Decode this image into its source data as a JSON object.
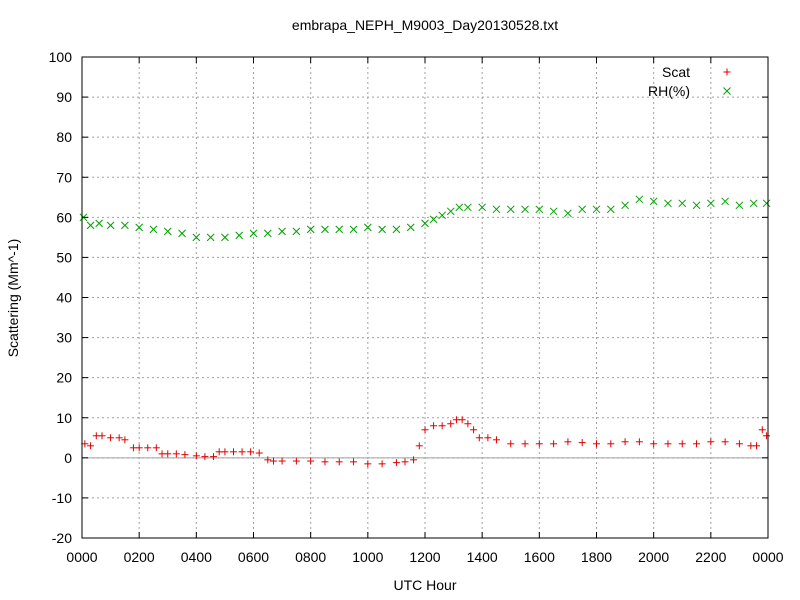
{
  "chart_data": {
    "type": "scatter",
    "title": "embrapa_NEPH_M9003_Day20130528.txt",
    "xlabel": "UTC Hour",
    "ylabel": "Scattering (Mm^-1)",
    "xlim": [
      0,
      24
    ],
    "ylim": [
      -20,
      100
    ],
    "x_ticks": [
      0,
      2,
      4,
      6,
      8,
      10,
      12,
      14,
      16,
      18,
      20,
      22,
      24
    ],
    "x_tick_labels": [
      "0000",
      "0200",
      "0400",
      "0600",
      "0800",
      "1000",
      "1200",
      "1400",
      "1600",
      "1800",
      "2000",
      "2200",
      "0000"
    ],
    "y_ticks": [
      -20,
      -10,
      0,
      10,
      20,
      30,
      40,
      50,
      60,
      70,
      80,
      90,
      100
    ],
    "y_tick_labels": [
      "-20",
      "-10",
      "0",
      "10",
      "20",
      "30",
      "40",
      "50",
      "60",
      "70",
      "80",
      "90",
      "100"
    ],
    "grid": true,
    "zero_line": true,
    "legend_position": "top-right",
    "series": [
      {
        "name": "Scat",
        "marker": "plus",
        "color": "#e00000",
        "x": [
          0.1,
          0.3,
          0.5,
          0.7,
          1.0,
          1.3,
          1.5,
          1.8,
          2.0,
          2.3,
          2.6,
          2.8,
          3.0,
          3.3,
          3.6,
          4.0,
          4.3,
          4.6,
          4.8,
          5.0,
          5.3,
          5.6,
          5.9,
          6.2,
          6.5,
          6.7,
          7.0,
          7.5,
          8.0,
          8.5,
          9.0,
          9.5,
          10.0,
          10.5,
          11.0,
          11.3,
          11.6,
          11.8,
          12.0,
          12.3,
          12.6,
          12.9,
          13.1,
          13.3,
          13.5,
          13.7,
          13.9,
          14.2,
          14.5,
          15.0,
          15.5,
          16.0,
          16.5,
          17.0,
          17.5,
          18.0,
          18.5,
          19.0,
          19.5,
          20.0,
          20.5,
          21.0,
          21.5,
          22.0,
          22.5,
          23.0,
          23.4,
          23.6,
          23.8,
          23.95
        ],
        "values": [
          3.5,
          3.0,
          5.5,
          5.5,
          5.0,
          5.0,
          4.5,
          2.5,
          2.5,
          2.5,
          2.5,
          1.0,
          1.0,
          1.0,
          0.8,
          0.5,
          0.3,
          0.3,
          1.5,
          1.5,
          1.5,
          1.5,
          1.5,
          1.2,
          -0.5,
          -0.8,
          -0.8,
          -0.8,
          -0.8,
          -1.0,
          -1.0,
          -1.0,
          -1.5,
          -1.5,
          -1.2,
          -1.0,
          -0.5,
          3.0,
          7.0,
          8.0,
          8.0,
          8.5,
          9.5,
          9.5,
          8.5,
          7.0,
          5.0,
          5.0,
          4.5,
          3.5,
          3.5,
          3.5,
          3.5,
          4.0,
          3.8,
          3.5,
          3.5,
          4.0,
          4.0,
          3.5,
          3.5,
          3.5,
          3.5,
          4.0,
          4.0,
          3.5,
          3.0,
          3.0,
          7.0,
          5.5
        ]
      },
      {
        "name": "RH(%)",
        "marker": "cross",
        "color": "#00a000",
        "x": [
          0.05,
          0.3,
          0.6,
          1.0,
          1.5,
          2.0,
          2.5,
          3.0,
          3.5,
          4.0,
          4.5,
          5.0,
          5.5,
          6.0,
          6.5,
          7.0,
          7.5,
          8.0,
          8.5,
          9.0,
          9.5,
          10.0,
          10.5,
          11.0,
          11.5,
          12.0,
          12.3,
          12.6,
          12.9,
          13.2,
          13.5,
          14.0,
          14.5,
          15.0,
          15.5,
          16.0,
          16.5,
          17.0,
          17.5,
          18.0,
          18.5,
          19.0,
          19.5,
          20.0,
          20.5,
          21.0,
          21.5,
          22.0,
          22.5,
          23.0,
          23.5,
          23.95
        ],
        "values": [
          60.0,
          58.0,
          58.5,
          58.0,
          58.0,
          57.5,
          57.0,
          56.5,
          56.0,
          55.0,
          55.0,
          55.0,
          55.5,
          56.0,
          56.0,
          56.5,
          56.5,
          57.0,
          57.0,
          57.0,
          57.0,
          57.5,
          57.0,
          57.0,
          57.5,
          58.5,
          59.5,
          60.5,
          61.5,
          62.5,
          62.5,
          62.5,
          62.0,
          62.0,
          62.0,
          62.0,
          61.5,
          61.0,
          62.0,
          62.0,
          62.0,
          63.0,
          64.5,
          64.0,
          63.5,
          63.5,
          63.0,
          63.5,
          64.0,
          63.0,
          63.5,
          63.5
        ]
      }
    ]
  }
}
